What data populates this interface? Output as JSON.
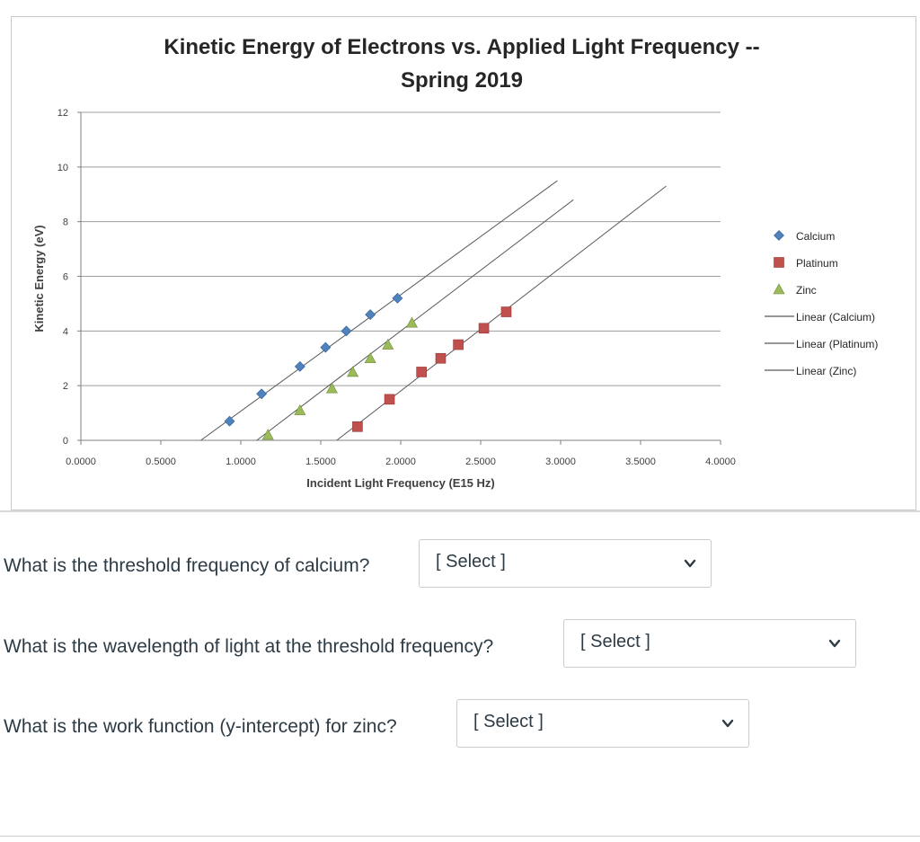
{
  "chart_data": {
    "type": "scatter",
    "title": "Kinetic Energy of Electrons vs. Applied Light Frequency --",
    "subtitle": "Spring 2019",
    "xlabel": "Incident Light Frequency (E15 Hz)",
    "ylabel": "Kinetic Energy (eV)",
    "xlim": [
      0,
      4
    ],
    "ylim": [
      0,
      12
    ],
    "xticks": [
      "0.0000",
      "0.5000",
      "1.0000",
      "1.5000",
      "2.0000",
      "2.5000",
      "3.0000",
      "3.5000",
      "4.0000"
    ],
    "yticks": [
      "0",
      "2",
      "4",
      "6",
      "8",
      "10",
      "12"
    ],
    "grid": true,
    "legend_position": "right",
    "series": [
      {
        "name": "Calcium",
        "marker": "diamond",
        "color": "#4f81bd",
        "x": [
          0.93,
          1.13,
          1.37,
          1.53,
          1.66,
          1.81,
          1.98
        ],
        "y": [
          0.7,
          1.7,
          2.7,
          3.4,
          4.0,
          4.6,
          5.2
        ]
      },
      {
        "name": "Platinum",
        "marker": "square",
        "color": "#c0504d",
        "x": [
          1.73,
          1.93,
          2.13,
          2.25,
          2.36,
          2.52,
          2.66
        ],
        "y": [
          0.5,
          1.5,
          2.5,
          3.0,
          3.5,
          4.1,
          4.7
        ]
      },
      {
        "name": "Zinc",
        "marker": "triangle",
        "color": "#9bbb59",
        "x": [
          1.17,
          1.37,
          1.57,
          1.7,
          1.81,
          1.92,
          2.07
        ],
        "y": [
          0.2,
          1.1,
          1.9,
          2.5,
          3.0,
          3.5,
          4.3
        ]
      }
    ],
    "trendlines": [
      {
        "name": "Linear (Calcium)",
        "color": "#595959",
        "x": [
          0.75,
          2.98
        ],
        "y": [
          0.0,
          9.5
        ]
      },
      {
        "name": "Linear (Platinum)",
        "color": "#595959",
        "x": [
          1.6,
          3.66
        ],
        "y": [
          0.0,
          9.3
        ]
      },
      {
        "name": "Linear (Zinc)",
        "color": "#595959",
        "x": [
          1.1,
          3.08
        ],
        "y": [
          0.0,
          8.8
        ]
      }
    ]
  },
  "questions": [
    {
      "text": "What is the threshold frequency of calcium?",
      "select": "[ Select ]"
    },
    {
      "text": "What is the wavelength of light at the threshold frequency?",
      "select": "[ Select ]"
    },
    {
      "text": "What is the work function (y-intercept) for zinc?",
      "select": "[ Select ]"
    }
  ],
  "icons": {
    "dropdown": "chevron-down-icon"
  }
}
